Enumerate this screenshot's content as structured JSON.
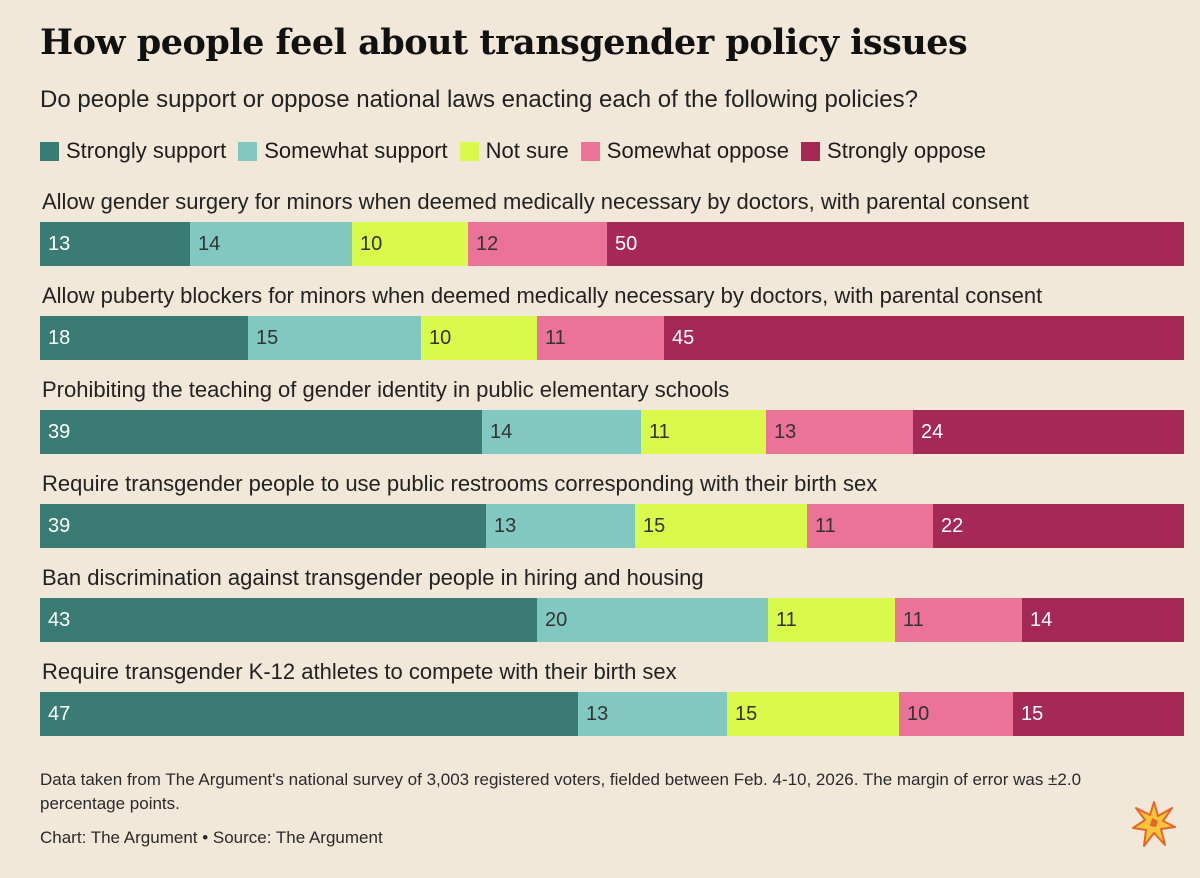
{
  "header": {
    "title": "How people feel about transgender policy issues",
    "subtitle": "Do people support or oppose national laws enacting each of the following policies?"
  },
  "colors": {
    "strongly_support": "#3a7b73",
    "somewhat_support": "#80c8c0",
    "not_sure": "#d9fa4a",
    "somewhat_oppose": "#ec7398",
    "strongly_oppose": "#a62854"
  },
  "chart_data": {
    "type": "bar",
    "orientation": "horizontal",
    "stacked": true,
    "title": "How people feel about transgender policy issues",
    "subtitle": "Do people support or oppose national laws enacting each of the following policies?",
    "legend_position": "top-left",
    "categories": [
      "Allow gender surgery for minors when deemed medically necessary by doctors, with parental consent",
      "Allow puberty blockers for minors when deemed medically necessary by doctors, with parental consent",
      "Prohibiting the teaching of gender identity in public elementary schools",
      "Require transgender people to use public restrooms corresponding with their birth sex",
      "Ban discrimination against transgender people in hiring and housing",
      "Require transgender K-12 athletes to compete with their birth sex"
    ],
    "series": [
      {
        "name": "Strongly support",
        "color": "#3a7b73",
        "values": [
          13,
          18,
          39,
          39,
          43,
          47
        ]
      },
      {
        "name": "Somewhat support",
        "color": "#80c8c0",
        "values": [
          14,
          15,
          14,
          13,
          20,
          13
        ]
      },
      {
        "name": "Not sure",
        "color": "#d9fa4a",
        "values": [
          10,
          10,
          11,
          15,
          11,
          15
        ]
      },
      {
        "name": "Somewhat oppose",
        "color": "#ec7398",
        "values": [
          12,
          11,
          13,
          11,
          11,
          10
        ]
      },
      {
        "name": "Strongly oppose",
        "color": "#a62854",
        "values": [
          50,
          45,
          24,
          22,
          14,
          15
        ]
      }
    ]
  },
  "footer": {
    "note": "Data taken from The Argument's national survey of 3,003 registered voters, fielded between Feb. 4-10, 2026. The margin of error was ±2.0 percentage points.",
    "credit": "Chart: The Argument • Source: The Argument"
  },
  "logo": {
    "icon": "starburst-icon"
  }
}
